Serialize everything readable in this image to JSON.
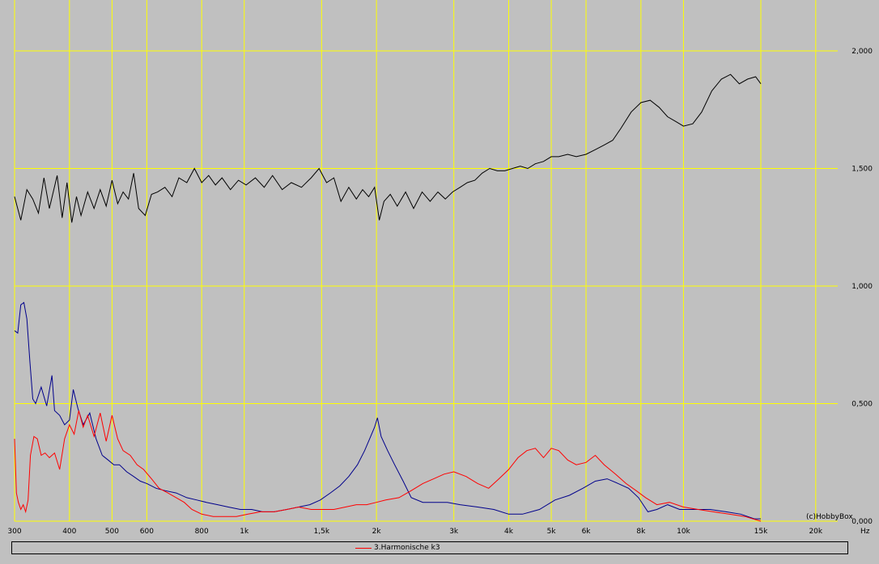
{
  "chart_data": {
    "type": "line",
    "x_scale": "log",
    "xlim": [
      300,
      28000
    ],
    "ylim": [
      0,
      2.2
    ],
    "grid": true,
    "grid_color": "#ffff00",
    "background_color": "#c0c0c0",
    "x_ticks": [
      {
        "value": 300,
        "label": "300"
      },
      {
        "value": 400,
        "label": "400"
      },
      {
        "value": 500,
        "label": "500"
      },
      {
        "value": 600,
        "label": "600"
      },
      {
        "value": 800,
        "label": "800"
      },
      {
        "value": 1000,
        "label": "1k"
      },
      {
        "value": 1500,
        "label": "1,5k"
      },
      {
        "value": 2000,
        "label": "2k"
      },
      {
        "value": 3000,
        "label": "3k"
      },
      {
        "value": 4000,
        "label": "4k"
      },
      {
        "value": 5000,
        "label": "5k"
      },
      {
        "value": 6000,
        "label": "6k"
      },
      {
        "value": 8000,
        "label": "8k"
      },
      {
        "value": 10000,
        "label": "10k"
      },
      {
        "value": 15000,
        "label": "15k"
      },
      {
        "value": 20000,
        "label": "20k"
      }
    ],
    "y_ticks": [
      {
        "value": 0,
        "label": "0,000"
      },
      {
        "value": 0.5,
        "label": "0,500"
      },
      {
        "value": 1.0,
        "label": "1,000"
      },
      {
        "value": 1.5,
        "label": "1,500"
      },
      {
        "value": 2.0,
        "label": "2,000"
      }
    ],
    "xlabel": "Hz",
    "watermark": "(c)HobbyBox",
    "series": [
      {
        "color": "#000000",
        "points": [
          [
            300,
            1.38
          ],
          [
            310,
            1.28
          ],
          [
            320,
            1.41
          ],
          [
            330,
            1.37
          ],
          [
            340,
            1.31
          ],
          [
            350,
            1.46
          ],
          [
            360,
            1.33
          ],
          [
            375,
            1.47
          ],
          [
            385,
            1.29
          ],
          [
            395,
            1.44
          ],
          [
            405,
            1.27
          ],
          [
            415,
            1.38
          ],
          [
            425,
            1.3
          ],
          [
            440,
            1.4
          ],
          [
            455,
            1.33
          ],
          [
            470,
            1.41
          ],
          [
            485,
            1.34
          ],
          [
            500,
            1.45
          ],
          [
            515,
            1.35
          ],
          [
            530,
            1.4
          ],
          [
            545,
            1.37
          ],
          [
            560,
            1.48
          ],
          [
            575,
            1.33
          ],
          [
            595,
            1.3
          ],
          [
            615,
            1.39
          ],
          [
            635,
            1.4
          ],
          [
            660,
            1.42
          ],
          [
            685,
            1.38
          ],
          [
            710,
            1.46
          ],
          [
            740,
            1.44
          ],
          [
            770,
            1.5
          ],
          [
            800,
            1.44
          ],
          [
            830,
            1.47
          ],
          [
            860,
            1.43
          ],
          [
            890,
            1.46
          ],
          [
            930,
            1.41
          ],
          [
            970,
            1.45
          ],
          [
            1010,
            1.43
          ],
          [
            1060,
            1.46
          ],
          [
            1110,
            1.42
          ],
          [
            1160,
            1.47
          ],
          [
            1220,
            1.41
          ],
          [
            1280,
            1.44
          ],
          [
            1350,
            1.42
          ],
          [
            1420,
            1.46
          ],
          [
            1480,
            1.5
          ],
          [
            1540,
            1.44
          ],
          [
            1600,
            1.46
          ],
          [
            1660,
            1.36
          ],
          [
            1730,
            1.42
          ],
          [
            1800,
            1.37
          ],
          [
            1860,
            1.41
          ],
          [
            1920,
            1.38
          ],
          [
            1980,
            1.42
          ],
          [
            2030,
            1.28
          ],
          [
            2080,
            1.36
          ],
          [
            2150,
            1.39
          ],
          [
            2230,
            1.34
          ],
          [
            2330,
            1.4
          ],
          [
            2430,
            1.33
          ],
          [
            2540,
            1.4
          ],
          [
            2650,
            1.36
          ],
          [
            2760,
            1.4
          ],
          [
            2870,
            1.37
          ],
          [
            2980,
            1.4
          ],
          [
            3100,
            1.42
          ],
          [
            3220,
            1.44
          ],
          [
            3350,
            1.45
          ],
          [
            3480,
            1.48
          ],
          [
            3620,
            1.5
          ],
          [
            3770,
            1.49
          ],
          [
            3920,
            1.49
          ],
          [
            4080,
            1.5
          ],
          [
            4250,
            1.51
          ],
          [
            4420,
            1.5
          ],
          [
            4600,
            1.52
          ],
          [
            4800,
            1.53
          ],
          [
            5000,
            1.55
          ],
          [
            5200,
            1.55
          ],
          [
            5450,
            1.56
          ],
          [
            5700,
            1.55
          ],
          [
            6000,
            1.56
          ],
          [
            6300,
            1.58
          ],
          [
            6600,
            1.6
          ],
          [
            6900,
            1.62
          ],
          [
            7200,
            1.67
          ],
          [
            7600,
            1.74
          ],
          [
            8000,
            1.78
          ],
          [
            8400,
            1.79
          ],
          [
            8800,
            1.76
          ],
          [
            9200,
            1.72
          ],
          [
            9600,
            1.7
          ],
          [
            10000,
            1.68
          ],
          [
            10500,
            1.69
          ],
          [
            11000,
            1.74
          ],
          [
            11600,
            1.83
          ],
          [
            12200,
            1.88
          ],
          [
            12800,
            1.9
          ],
          [
            13400,
            1.86
          ],
          [
            14000,
            1.88
          ],
          [
            14600,
            1.89
          ],
          [
            15000,
            1.86
          ]
        ]
      },
      {
        "color": "#00008b",
        "points": [
          [
            300,
            0.81
          ],
          [
            305,
            0.8
          ],
          [
            310,
            0.92
          ],
          [
            315,
            0.93
          ],
          [
            320,
            0.86
          ],
          [
            325,
            0.68
          ],
          [
            330,
            0.52
          ],
          [
            335,
            0.5
          ],
          [
            345,
            0.57
          ],
          [
            355,
            0.49
          ],
          [
            365,
            0.62
          ],
          [
            370,
            0.47
          ],
          [
            380,
            0.45
          ],
          [
            390,
            0.41
          ],
          [
            400,
            0.43
          ],
          [
            408,
            0.56
          ],
          [
            418,
            0.48
          ],
          [
            430,
            0.41
          ],
          [
            445,
            0.46
          ],
          [
            460,
            0.35
          ],
          [
            475,
            0.28
          ],
          [
            490,
            0.26
          ],
          [
            505,
            0.24
          ],
          [
            520,
            0.24
          ],
          [
            540,
            0.21
          ],
          [
            560,
            0.19
          ],
          [
            580,
            0.17
          ],
          [
            600,
            0.16
          ],
          [
            630,
            0.14
          ],
          [
            660,
            0.13
          ],
          [
            700,
            0.12
          ],
          [
            740,
            0.1
          ],
          [
            780,
            0.09
          ],
          [
            820,
            0.08
          ],
          [
            870,
            0.07
          ],
          [
            920,
            0.06
          ],
          [
            980,
            0.05
          ],
          [
            1040,
            0.05
          ],
          [
            1100,
            0.04
          ],
          [
            1170,
            0.04
          ],
          [
            1250,
            0.05
          ],
          [
            1330,
            0.06
          ],
          [
            1410,
            0.07
          ],
          [
            1490,
            0.09
          ],
          [
            1570,
            0.12
          ],
          [
            1650,
            0.15
          ],
          [
            1730,
            0.19
          ],
          [
            1810,
            0.24
          ],
          [
            1880,
            0.3
          ],
          [
            1930,
            0.35
          ],
          [
            1980,
            0.4
          ],
          [
            2010,
            0.44
          ],
          [
            2050,
            0.36
          ],
          [
            2120,
            0.3
          ],
          [
            2200,
            0.24
          ],
          [
            2300,
            0.17
          ],
          [
            2400,
            0.1
          ],
          [
            2550,
            0.08
          ],
          [
            2700,
            0.08
          ],
          [
            2900,
            0.08
          ],
          [
            3100,
            0.07
          ],
          [
            3400,
            0.06
          ],
          [
            3700,
            0.05
          ],
          [
            4000,
            0.03
          ],
          [
            4300,
            0.03
          ],
          [
            4700,
            0.05
          ],
          [
            5100,
            0.09
          ],
          [
            5500,
            0.11
          ],
          [
            5900,
            0.14
          ],
          [
            6300,
            0.17
          ],
          [
            6700,
            0.18
          ],
          [
            7100,
            0.16
          ],
          [
            7500,
            0.14
          ],
          [
            7900,
            0.1
          ],
          [
            8300,
            0.04
          ],
          [
            8700,
            0.05
          ],
          [
            9200,
            0.07
          ],
          [
            9800,
            0.05
          ],
          [
            10500,
            0.05
          ],
          [
            11500,
            0.05
          ],
          [
            12500,
            0.04
          ],
          [
            13500,
            0.03
          ],
          [
            14500,
            0.01
          ],
          [
            15000,
            0.01
          ]
        ]
      },
      {
        "name": "3.Harmonische k3",
        "color": "#ff0000",
        "points": [
          [
            300,
            0.35
          ],
          [
            303,
            0.12
          ],
          [
            306,
            0.08
          ],
          [
            310,
            0.05
          ],
          [
            314,
            0.07
          ],
          [
            318,
            0.04
          ],
          [
            322,
            0.09
          ],
          [
            326,
            0.28
          ],
          [
            332,
            0.36
          ],
          [
            338,
            0.35
          ],
          [
            345,
            0.28
          ],
          [
            352,
            0.29
          ],
          [
            360,
            0.27
          ],
          [
            370,
            0.29
          ],
          [
            380,
            0.22
          ],
          [
            390,
            0.35
          ],
          [
            400,
            0.41
          ],
          [
            410,
            0.37
          ],
          [
            420,
            0.47
          ],
          [
            430,
            0.4
          ],
          [
            440,
            0.45
          ],
          [
            455,
            0.36
          ],
          [
            470,
            0.46
          ],
          [
            485,
            0.34
          ],
          [
            500,
            0.45
          ],
          [
            515,
            0.35
          ],
          [
            530,
            0.3
          ],
          [
            550,
            0.28
          ],
          [
            570,
            0.24
          ],
          [
            590,
            0.22
          ],
          [
            615,
            0.18
          ],
          [
            640,
            0.14
          ],
          [
            670,
            0.12
          ],
          [
            700,
            0.1
          ],
          [
            730,
            0.08
          ],
          [
            760,
            0.05
          ],
          [
            800,
            0.03
          ],
          [
            850,
            0.02
          ],
          [
            900,
            0.02
          ],
          [
            960,
            0.02
          ],
          [
            1020,
            0.03
          ],
          [
            1090,
            0.04
          ],
          [
            1170,
            0.04
          ],
          [
            1250,
            0.05
          ],
          [
            1330,
            0.06
          ],
          [
            1420,
            0.05
          ],
          [
            1510,
            0.05
          ],
          [
            1600,
            0.05
          ],
          [
            1700,
            0.06
          ],
          [
            1800,
            0.07
          ],
          [
            1900,
            0.07
          ],
          [
            2000,
            0.08
          ],
          [
            2100,
            0.09
          ],
          [
            2250,
            0.1
          ],
          [
            2400,
            0.13
          ],
          [
            2550,
            0.16
          ],
          [
            2700,
            0.18
          ],
          [
            2850,
            0.2
          ],
          [
            3000,
            0.21
          ],
          [
            3200,
            0.19
          ],
          [
            3400,
            0.16
          ],
          [
            3600,
            0.14
          ],
          [
            3800,
            0.18
          ],
          [
            4000,
            0.22
          ],
          [
            4200,
            0.27
          ],
          [
            4400,
            0.3
          ],
          [
            4600,
            0.31
          ],
          [
            4800,
            0.27
          ],
          [
            5000,
            0.31
          ],
          [
            5200,
            0.3
          ],
          [
            5450,
            0.26
          ],
          [
            5700,
            0.24
          ],
          [
            6000,
            0.25
          ],
          [
            6300,
            0.28
          ],
          [
            6600,
            0.24
          ],
          [
            7000,
            0.2
          ],
          [
            7400,
            0.16
          ],
          [
            7800,
            0.13
          ],
          [
            8200,
            0.1
          ],
          [
            8700,
            0.07
          ],
          [
            9300,
            0.08
          ],
          [
            10000,
            0.06
          ],
          [
            10800,
            0.05
          ],
          [
            11700,
            0.04
          ],
          [
            12700,
            0.03
          ],
          [
            13800,
            0.02
          ],
          [
            15000,
            0.0
          ]
        ]
      }
    ]
  }
}
